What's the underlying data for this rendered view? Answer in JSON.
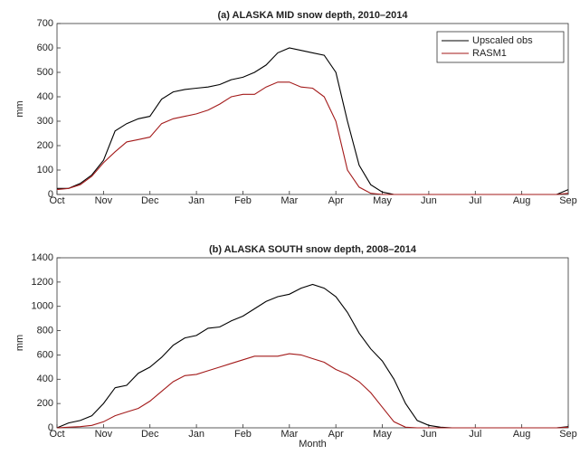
{
  "chart_data": [
    {
      "type": "line",
      "title": "(a) ALASKA MID snow depth, 2010–2014",
      "ylabel": "mm",
      "x": [
        0,
        0.25,
        0.5,
        0.75,
        1,
        1.25,
        1.5,
        1.75,
        2,
        2.25,
        2.5,
        2.75,
        3,
        3.25,
        3.5,
        3.75,
        4,
        4.25,
        4.5,
        4.75,
        5,
        5.25,
        5.5,
        5.75,
        6,
        6.25,
        6.5,
        6.75,
        7,
        7.25,
        7.5,
        7.75,
        8,
        8.25,
        8.5,
        8.75,
        9,
        9.25,
        9.5,
        9.75,
        10,
        10.25,
        10.5,
        10.75,
        11
      ],
      "series": [
        {
          "name": "Upscaled obs",
          "color": "#000000",
          "values": [
            25,
            25,
            45,
            80,
            140,
            260,
            290,
            310,
            320,
            390,
            420,
            430,
            435,
            440,
            450,
            470,
            480,
            500,
            530,
            580,
            600,
            590,
            580,
            570,
            500,
            300,
            120,
            40,
            10,
            0,
            0,
            0,
            0,
            0,
            0,
            0,
            0,
            0,
            0,
            0,
            0,
            0,
            0,
            0,
            20
          ]
        },
        {
          "name": "RASM1",
          "color": "#a31a1a",
          "values": [
            20,
            25,
            40,
            75,
            130,
            175,
            215,
            225,
            235,
            290,
            310,
            320,
            330,
            345,
            370,
            400,
            410,
            410,
            440,
            460,
            460,
            440,
            435,
            400,
            300,
            100,
            30,
            5,
            0,
            0,
            0,
            0,
            0,
            0,
            0,
            0,
            0,
            0,
            0,
            0,
            0,
            0,
            0,
            0,
            5
          ]
        }
      ],
      "xlim": [
        0,
        11
      ],
      "xticks": [
        {
          "value": 0,
          "label": "Oct"
        },
        {
          "value": 1,
          "label": "Nov"
        },
        {
          "value": 2,
          "label": "Dec"
        },
        {
          "value": 3,
          "label": "Jan"
        },
        {
          "value": 4,
          "label": "Feb"
        },
        {
          "value": 5,
          "label": "Mar"
        },
        {
          "value": 6,
          "label": "Apr"
        },
        {
          "value": 7,
          "label": "May"
        },
        {
          "value": 8,
          "label": "Jun"
        },
        {
          "value": 9,
          "label": "Jul"
        },
        {
          "value": 10,
          "label": "Aug"
        },
        {
          "value": 11,
          "label": "Sep"
        }
      ],
      "ylim": [
        0,
        700
      ],
      "yticks": [
        0,
        100,
        200,
        300,
        400,
        500,
        600,
        700
      ],
      "legend": "upper right"
    },
    {
      "type": "line",
      "title": "(b) ALASKA SOUTH snow depth, 2008–2014",
      "ylabel": "mm",
      "xlabel": "Month",
      "x": [
        0,
        0.25,
        0.5,
        0.75,
        1,
        1.25,
        1.5,
        1.75,
        2,
        2.25,
        2.5,
        2.75,
        3,
        3.25,
        3.5,
        3.75,
        4,
        4.25,
        4.5,
        4.75,
        5,
        5.25,
        5.5,
        5.75,
        6,
        6.25,
        6.5,
        6.75,
        7,
        7.25,
        7.5,
        7.75,
        8,
        8.25,
        8.5,
        8.75,
        9,
        9.25,
        9.5,
        9.75,
        10,
        10.25,
        10.5,
        10.75,
        11
      ],
      "series": [
        {
          "name": "Upscaled obs",
          "color": "#000000",
          "values": [
            0,
            40,
            60,
            100,
            200,
            330,
            350,
            450,
            500,
            580,
            680,
            740,
            760,
            820,
            830,
            880,
            920,
            980,
            1040,
            1080,
            1100,
            1150,
            1180,
            1150,
            1080,
            950,
            780,
            650,
            550,
            400,
            200,
            60,
            20,
            5,
            0,
            0,
            0,
            0,
            0,
            0,
            0,
            0,
            0,
            0,
            10
          ]
        },
        {
          "name": "RASM1",
          "color": "#a31a1a",
          "values": [
            0,
            5,
            10,
            20,
            50,
            100,
            130,
            160,
            220,
            300,
            380,
            430,
            440,
            470,
            500,
            530,
            560,
            590,
            590,
            590,
            610,
            600,
            570,
            540,
            480,
            440,
            380,
            290,
            170,
            50,
            5,
            0,
            0,
            0,
            0,
            0,
            0,
            0,
            0,
            0,
            0,
            0,
            0,
            0,
            5
          ]
        }
      ],
      "xlim": [
        0,
        11
      ],
      "xticks": [
        {
          "value": 0,
          "label": "Oct"
        },
        {
          "value": 1,
          "label": "Nov"
        },
        {
          "value": 2,
          "label": "Dec"
        },
        {
          "value": 3,
          "label": "Jan"
        },
        {
          "value": 4,
          "label": "Feb"
        },
        {
          "value": 5,
          "label": "Mar"
        },
        {
          "value": 6,
          "label": "Apr"
        },
        {
          "value": 7,
          "label": "May"
        },
        {
          "value": 8,
          "label": "Jun"
        },
        {
          "value": 9,
          "label": "Jul"
        },
        {
          "value": 10,
          "label": "Aug"
        },
        {
          "value": 11,
          "label": "Sep"
        }
      ],
      "ylim": [
        0,
        1400
      ],
      "yticks": [
        0,
        200,
        400,
        600,
        800,
        1000,
        1200,
        1400
      ]
    }
  ]
}
